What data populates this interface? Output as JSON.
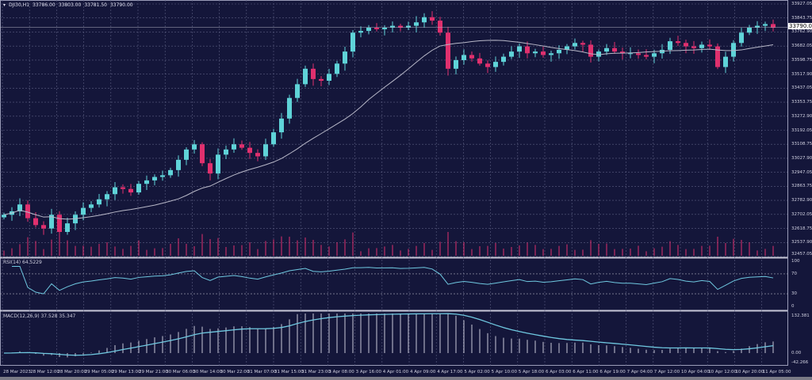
{
  "header": {
    "symbol": "DJI30,H1",
    "open": "33786.00",
    "high": "33803.00",
    "low": "33781.50",
    "close": "33790.00"
  },
  "current_price": "33790.00",
  "colors": {
    "background": "#14163a",
    "bull": "#5fd3d8",
    "bear": "#e0306e",
    "ma": "#b8b8c8",
    "indicator": "#6fc8e0",
    "grid": "#5a5d80"
  },
  "chart_data": {
    "type": "candlestick",
    "price_axis": {
      "min": 32457.05,
      "max": 33927.05,
      "ticks": [
        "33927.05",
        "33843.75",
        "33762.90",
        "33682.05",
        "33598.75",
        "33517.90",
        "33437.05",
        "33353.75",
        "33272.90",
        "33192.05",
        "33108.75",
        "33027.90",
        "32947.05",
        "32863.75",
        "32782.90",
        "32702.05",
        "32618.75",
        "32537.90",
        "32457.05"
      ]
    },
    "time_labels": [
      "28 Mar 2023",
      "28 Mar 12:00",
      "28 Mar 20:00",
      "29 Mar 05:00",
      "29 Mar 13:00",
      "29 Mar 21:00",
      "30 Mar 06:00",
      "30 Mar 14:00",
      "30 Mar 22:00",
      "31 Mar 07:00",
      "31 Mar 15:00",
      "31 Mar 23:00",
      "3 Apr 08:00",
      "3 Apr 16:00",
      "4 Apr 01:00",
      "4 Apr 09:00",
      "4 Apr 17:00",
      "5 Apr 02:00",
      "5 Apr 10:00",
      "5 Apr 18:00",
      "6 Apr 03:00",
      "6 Apr 11:00",
      "6 Apr 19:00",
      "7 Apr 04:00",
      "7 Apr 12:00",
      "10 Apr 04:00",
      "10 Apr 12:00",
      "10 Apr 20:00",
      "11 Apr 05:00"
    ],
    "closes": [
      32700,
      32720,
      32760,
      32680,
      32640,
      32620,
      32700,
      32600,
      32650,
      32700,
      32740,
      32760,
      32790,
      32820,
      32860,
      32850,
      32830,
      32880,
      32900,
      32920,
      32930,
      32960,
      33020,
      33080,
      33110,
      33000,
      32940,
      33050,
      33080,
      33110,
      33090,
      33060,
      33040,
      33110,
      33180,
      33260,
      33380,
      33460,
      33550,
      33490,
      33480,
      33520,
      33580,
      33650,
      33760,
      33770,
      33790,
      33780,
      33790,
      33800,
      33790,
      33800,
      33820,
      33850,
      33830,
      33760,
      33550,
      33600,
      33630,
      33610,
      33580,
      33560,
      33590,
      33620,
      33650,
      33680,
      33640,
      33650,
      33630,
      33640,
      33660,
      33680,
      33700,
      33690,
      33620,
      33650,
      33670,
      33650,
      33640,
      33640,
      33630,
      33620,
      33640,
      33660,
      33710,
      33700,
      33680,
      33670,
      33690,
      33680,
      33560,
      33620,
      33700,
      33760,
      33790,
      33800,
      33810,
      33790
    ],
    "rsi": {
      "label": "RSI(14) 64.5229",
      "ticks": [
        "100",
        "70",
        "30",
        "0"
      ],
      "range": [
        0,
        100
      ]
    },
    "macd": {
      "label": "MACD(12,26,9) 37.528 35.347",
      "ticks": [
        "132.381",
        "0.00",
        "-42.266"
      ],
      "range": [
        -42.266,
        132.381
      ]
    }
  }
}
